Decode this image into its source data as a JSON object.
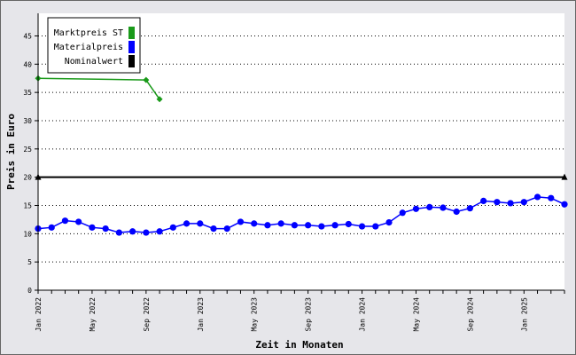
{
  "chart_data": {
    "type": "line",
    "xlabel": "Zeit in Monaten",
    "ylabel": "Preis in Euro",
    "ylim": [
      0,
      49
    ],
    "yticks": [
      0,
      5,
      10,
      15,
      20,
      25,
      30,
      35,
      40,
      45
    ],
    "grid": "horizontal-dotted",
    "legend_placement": "top-left",
    "month_count": 39,
    "x_tick_labels": [
      {
        "label": "Jan 2022",
        "index": 0
      },
      {
        "label": "May 2022",
        "index": 4
      },
      {
        "label": "Sep 2022",
        "index": 8
      },
      {
        "label": "Jan 2023",
        "index": 12
      },
      {
        "label": "May 2023",
        "index": 16
      },
      {
        "label": "Sep 2023",
        "index": 20
      },
      {
        "label": "Jan 2024",
        "index": 24
      },
      {
        "label": "May 2024",
        "index": 28
      },
      {
        "label": "Sep 2024",
        "index": 32
      },
      {
        "label": "Jan 2025",
        "index": 36
      }
    ],
    "series": [
      {
        "name": "Marktpreis ST",
        "color": "#1a9a1a",
        "marker": "diamond",
        "points": [
          {
            "i": 0,
            "y": 37.5
          },
          {
            "i": 8,
            "y": 37.2
          },
          {
            "i": 9,
            "y": 33.8
          }
        ]
      },
      {
        "name": "Materialpreis",
        "color": "#0000ff",
        "marker": "circle",
        "values": [
          10.9,
          11.1,
          12.3,
          12.1,
          11.1,
          10.9,
          10.2,
          10.4,
          10.2,
          10.4,
          11.1,
          11.8,
          11.8,
          10.9,
          10.9,
          12.1,
          11.8,
          11.5,
          11.8,
          11.5,
          11.5,
          11.3,
          11.5,
          11.7,
          11.3,
          11.3,
          12.0,
          13.7,
          14.4,
          14.7,
          14.6,
          13.9,
          14.5,
          15.8,
          15.6,
          15.4,
          15.6,
          16.5,
          16.3,
          15.2
        ]
      },
      {
        "name": "Nominalwert",
        "color": "#000000",
        "marker": "triangle",
        "points": [
          {
            "i": 0,
            "y": 20
          },
          {
            "i": 39,
            "y": 20
          }
        ]
      }
    ]
  }
}
